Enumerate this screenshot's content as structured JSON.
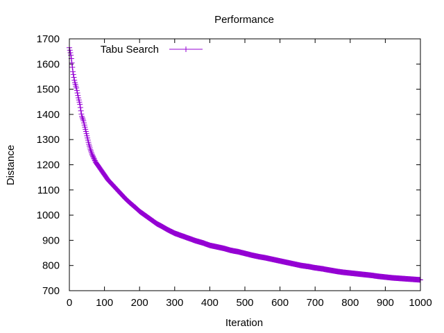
{
  "chart_data": {
    "type": "line",
    "title": "Performance",
    "xlabel": "Iteration",
    "ylabel": "Distance",
    "xlim": [
      0,
      1000
    ],
    "ylim": [
      700,
      1700
    ],
    "x_ticks": [
      "0",
      "100",
      "200",
      "300",
      "400",
      "500",
      "600",
      "700",
      "800",
      "900",
      "1000"
    ],
    "y_ticks": [
      "700",
      "800",
      "900",
      "1000",
      "1100",
      "1200",
      "1300",
      "1400",
      "1500",
      "1600",
      "1700"
    ],
    "grid": false,
    "legend_position": "top-left",
    "series": [
      {
        "name": "Tabu Search",
        "color": "#9400d3",
        "marker": "plus",
        "points": [
          [
            0,
            1665
          ],
          [
            5,
            1630
          ],
          [
            10,
            1570
          ],
          [
            15,
            1530
          ],
          [
            20,
            1505
          ],
          [
            25,
            1470
          ],
          [
            30,
            1440
          ],
          [
            35,
            1395
          ],
          [
            40,
            1375
          ],
          [
            45,
            1345
          ],
          [
            50,
            1315
          ],
          [
            55,
            1285
          ],
          [
            60,
            1260
          ],
          [
            65,
            1240
          ],
          [
            70,
            1225
          ],
          [
            75,
            1210
          ],
          [
            80,
            1200
          ],
          [
            85,
            1190
          ],
          [
            90,
            1180
          ],
          [
            95,
            1170
          ],
          [
            100,
            1160
          ],
          [
            110,
            1140
          ],
          [
            120,
            1125
          ],
          [
            130,
            1110
          ],
          [
            140,
            1095
          ],
          [
            150,
            1080
          ],
          [
            160,
            1065
          ],
          [
            170,
            1052
          ],
          [
            180,
            1040
          ],
          [
            190,
            1028
          ],
          [
            200,
            1015
          ],
          [
            210,
            1005
          ],
          [
            220,
            995
          ],
          [
            230,
            985
          ],
          [
            240,
            975
          ],
          [
            250,
            965
          ],
          [
            260,
            958
          ],
          [
            270,
            950
          ],
          [
            280,
            942
          ],
          [
            290,
            935
          ],
          [
            300,
            928
          ],
          [
            320,
            918
          ],
          [
            340,
            908
          ],
          [
            360,
            898
          ],
          [
            380,
            890
          ],
          [
            400,
            880
          ],
          [
            420,
            874
          ],
          [
            440,
            868
          ],
          [
            460,
            860
          ],
          [
            480,
            855
          ],
          [
            500,
            848
          ],
          [
            520,
            841
          ],
          [
            540,
            835
          ],
          [
            560,
            830
          ],
          [
            580,
            824
          ],
          [
            600,
            818
          ],
          [
            620,
            812
          ],
          [
            640,
            806
          ],
          [
            660,
            800
          ],
          [
            680,
            796
          ],
          [
            700,
            791
          ],
          [
            720,
            787
          ],
          [
            740,
            782
          ],
          [
            760,
            777
          ],
          [
            780,
            773
          ],
          [
            800,
            770
          ],
          [
            820,
            767
          ],
          [
            840,
            764
          ],
          [
            860,
            761
          ],
          [
            880,
            757
          ],
          [
            900,
            754
          ],
          [
            920,
            751
          ],
          [
            940,
            749
          ],
          [
            960,
            747
          ],
          [
            980,
            745
          ],
          [
            1000,
            743
          ]
        ]
      }
    ]
  }
}
